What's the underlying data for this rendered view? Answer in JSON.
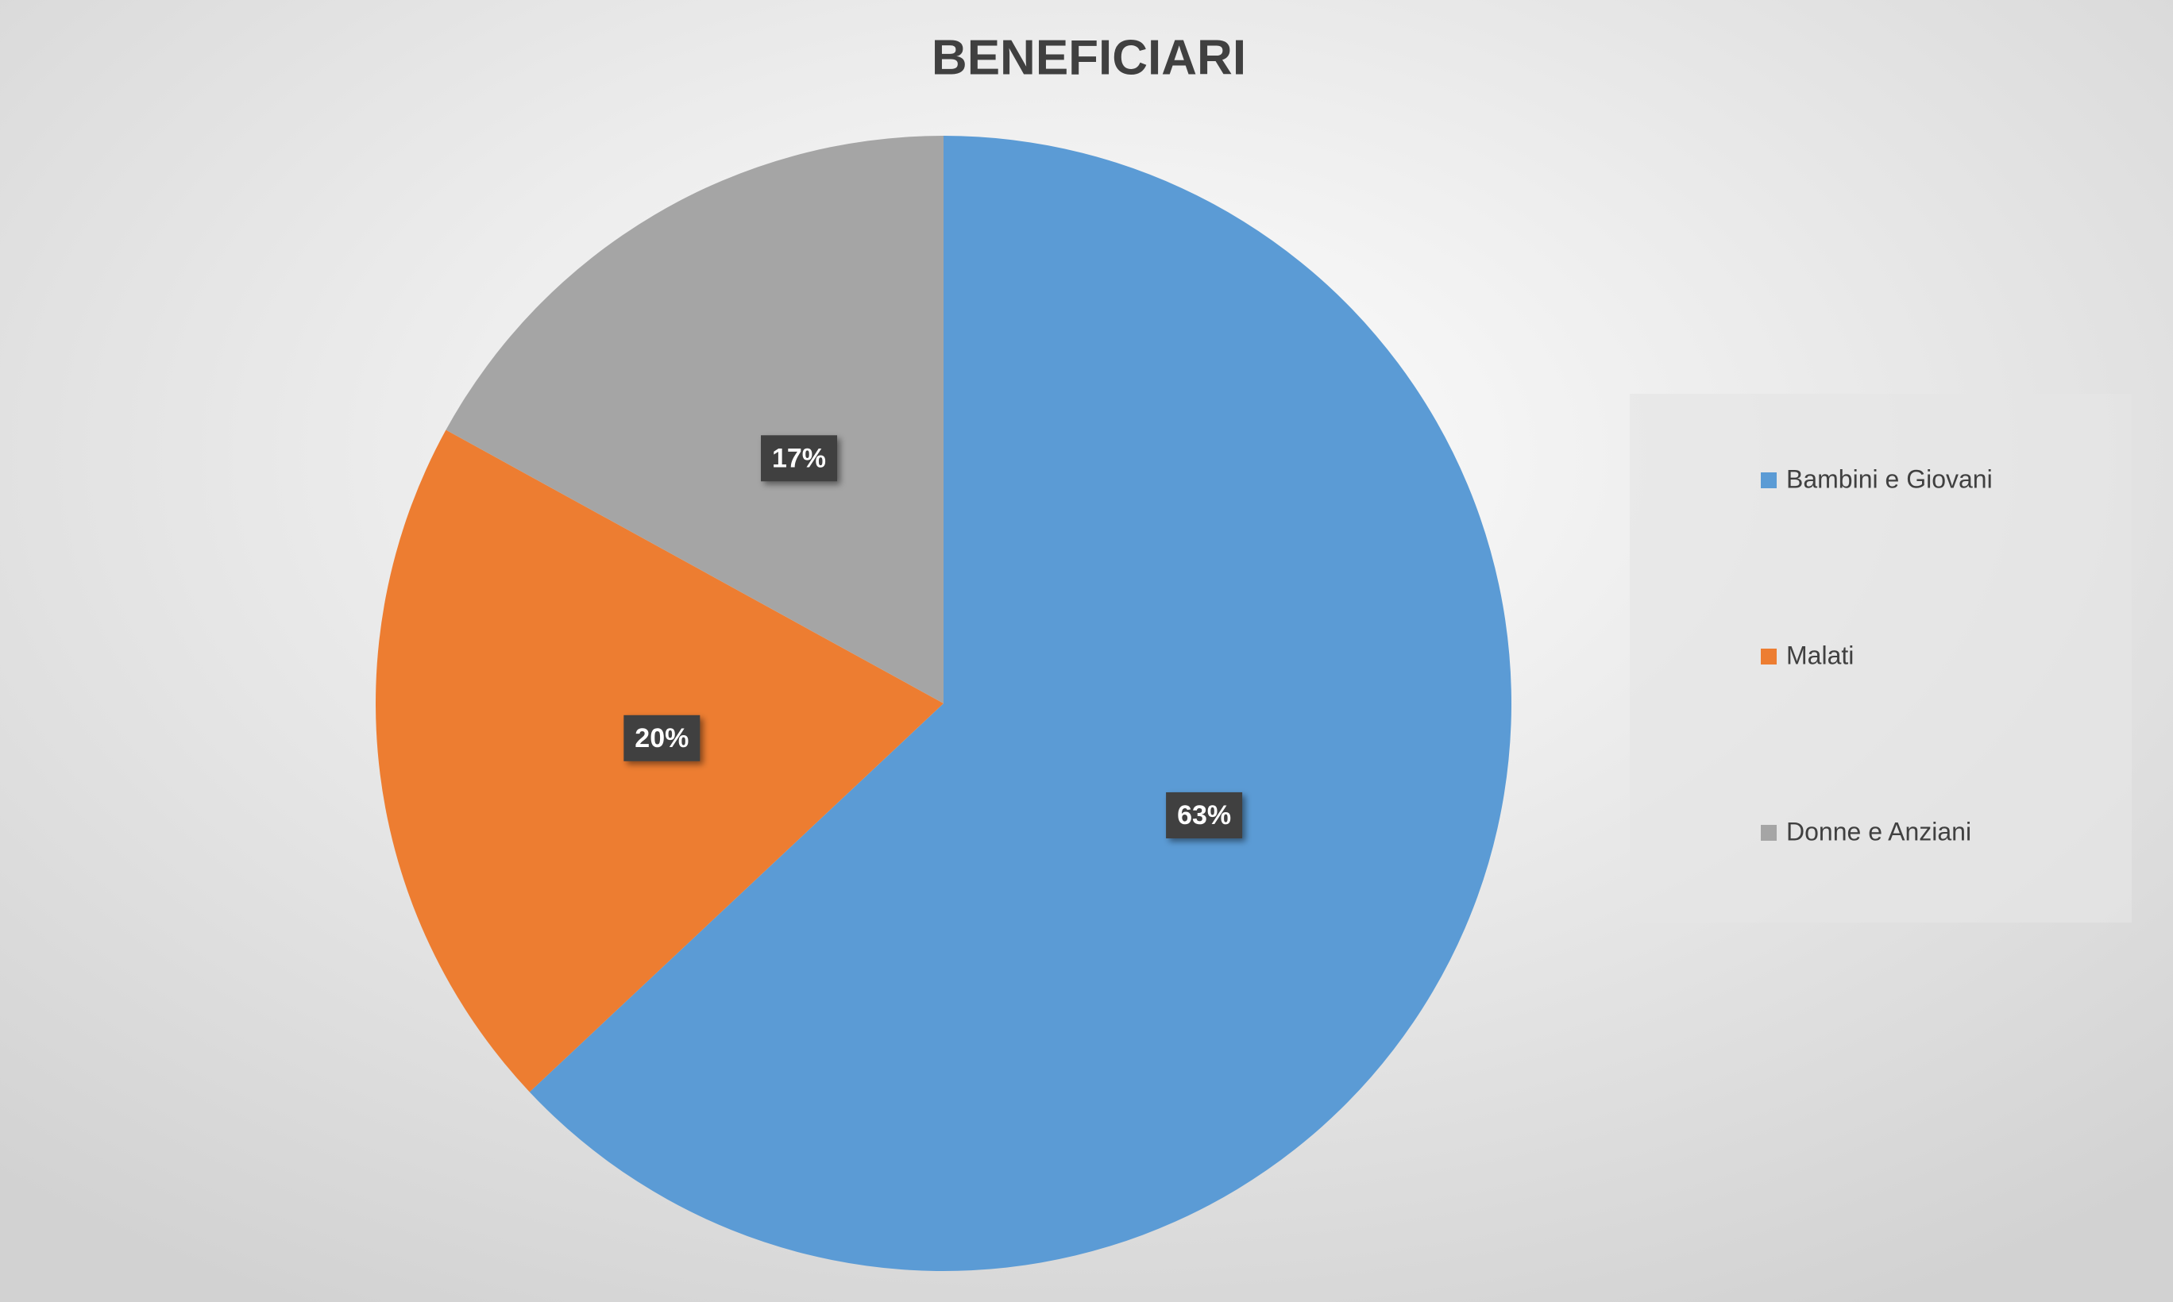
{
  "chart_data": {
    "type": "pie",
    "title": "BENEFICIARI",
    "categories": [
      "Bambini e Giovani",
      "Malati",
      "Donne e Anziani"
    ],
    "values": [
      63,
      20,
      17
    ],
    "value_labels": [
      "63%",
      "20%",
      "17%"
    ],
    "colors": [
      "#5b9bd5",
      "#ed7d31",
      "#a5a5a5"
    ],
    "legend": "right"
  }
}
